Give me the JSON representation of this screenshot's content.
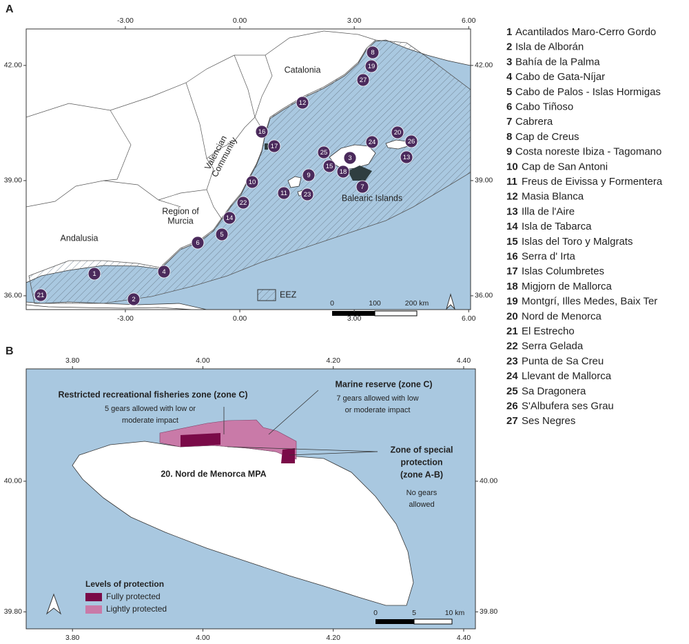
{
  "panel_a": {
    "label": "A",
    "xlim": [
      -5.6,
      6.05
    ],
    "ylim": [
      35.64,
      42.95
    ],
    "xticks": [
      {
        "value": -3,
        "label": "-3.00"
      },
      {
        "value": 0,
        "label": "0.00"
      },
      {
        "value": 3,
        "label": "3.00"
      },
      {
        "value": 6,
        "label": "6.00"
      }
    ],
    "yticks": [
      {
        "value": 36,
        "label": "36.00"
      },
      {
        "value": 39,
        "label": "39.00"
      },
      {
        "value": 42,
        "label": "42.00"
      }
    ],
    "regions": [
      {
        "lines": [
          "Catalonia"
        ]
      },
      {
        "lines": [
          "Valencian",
          "Community"
        ]
      },
      {
        "lines": [
          "Region of",
          "Murcia"
        ]
      },
      {
        "lines": [
          "Andalusia"
        ]
      },
      {
        "lines": [
          "Balearic Islands"
        ]
      }
    ],
    "legend": "EEZ",
    "scale_labels": [
      "0",
      "100",
      "200 km"
    ]
  },
  "sites": [
    {
      "id": 1,
      "name": "Acantilados Maro-Cerro Gordo"
    },
    {
      "id": 2,
      "name": "Isla de Alborán"
    },
    {
      "id": 3,
      "name": "Bahía de la Palma"
    },
    {
      "id": 4,
      "name": "Cabo de Gata-Níjar"
    },
    {
      "id": 5,
      "name": "Cabo de Palos - Islas Hormigas"
    },
    {
      "id": 6,
      "name": "Cabo Tiñoso"
    },
    {
      "id": 7,
      "name": "Cabrera"
    },
    {
      "id": 8,
      "name": "Cap de Creus"
    },
    {
      "id": 9,
      "name": "Costa noreste Ibiza - Tagomano"
    },
    {
      "id": 10,
      "name": "Cap de San Antoni"
    },
    {
      "id": 11,
      "name": "Freus de Eivissa y Formentera"
    },
    {
      "id": 12,
      "name": "Masia Blanca"
    },
    {
      "id": 13,
      "name": "Illa de l'Aire"
    },
    {
      "id": 14,
      "name": "Isla de Tabarca"
    },
    {
      "id": 15,
      "name": "Islas del Toro y Malgrats"
    },
    {
      "id": 16,
      "name": "Serra d' Irta"
    },
    {
      "id": 17,
      "name": "Islas Columbretes"
    },
    {
      "id": 18,
      "name": "Migjorn de Mallorca"
    },
    {
      "id": 19,
      "name": "Montgrí, Illes Medes, Baix Ter"
    },
    {
      "id": 20,
      "name": "Nord de Menorca"
    },
    {
      "id": 21,
      "name": "El Estrecho"
    },
    {
      "id": 22,
      "name": "Serra Gelada"
    },
    {
      "id": 23,
      "name": "Punta de Sa Creu"
    },
    {
      "id": 24,
      "name": "Llevant de Mallorca"
    },
    {
      "id": 25,
      "name": "Sa Dragonera"
    },
    {
      "id": 26,
      "name": "S'Albufera ses Grau"
    },
    {
      "id": 27,
      "name": "Ses Negres"
    }
  ],
  "panel_b": {
    "label": "B",
    "xlim": [
      3.729,
      4.418
    ],
    "ylim": [
      39.774,
      40.172
    ],
    "xticks": [
      {
        "value": 3.8,
        "label": "3.80"
      },
      {
        "value": 4.0,
        "label": "4.00"
      },
      {
        "value": 4.2,
        "label": "4.20"
      },
      {
        "value": 4.4,
        "label": "4.40"
      }
    ],
    "yticks": [
      {
        "value": 39.8,
        "label": "39.80"
      },
      {
        "value": 40.0,
        "label": "40.00"
      }
    ],
    "annotations": [
      {
        "title": [
          "Restricted recreational fisheries zone (zone C)"
        ],
        "note": [
          "5 gears allowed with low or",
          "moderate impact"
        ]
      },
      {
        "title": [
          "Marine reserve (zone C)"
        ],
        "note": [
          "7 gears allowed with low",
          "or moderate impact"
        ]
      },
      {
        "title": [
          "Zone of special",
          "protection",
          "(zone A-B)"
        ],
        "note": [
          "No gears",
          "allowed"
        ]
      }
    ],
    "mpa_label": "20. Nord de Menorca MPA",
    "legend_title": "Levels of protection",
    "legend": [
      {
        "name": "Fully protected",
        "color": "#7a0a48"
      },
      {
        "name": "Lightly protected",
        "color": "#c97aa8"
      }
    ],
    "scale_labels": [
      "0",
      "5",
      "10 km"
    ]
  }
}
